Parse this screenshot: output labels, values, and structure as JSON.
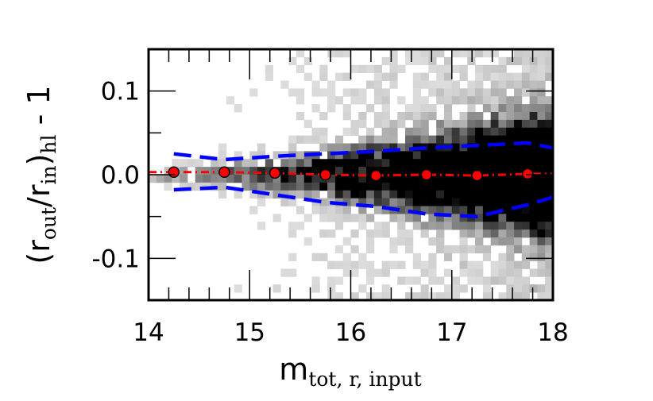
{
  "chart_data": {
    "type": "scatter",
    "title": "",
    "xlabel": {
      "main": "m",
      "sub": "tot, r, input"
    },
    "ylabel": {
      "open": "(r",
      "sub1": "out",
      "slash": "/r",
      "sub2": "in",
      "close": ")",
      "sub3": "hl",
      "tail": " - 1"
    },
    "xlim": [
      14,
      18
    ],
    "ylim": [
      -0.15,
      0.15
    ],
    "x_ticks": [
      14,
      15,
      16,
      17,
      18
    ],
    "x_tick_labels": [
      "14",
      "15",
      "16",
      "17",
      "18"
    ],
    "y_ticks": [
      -0.1,
      0.0,
      0.1
    ],
    "y_tick_labels": [
      "-0.1",
      "0.0",
      "0.1"
    ],
    "grid": false,
    "background": "2d histogram (grayscale density)",
    "series": [
      {
        "kind": "median-points",
        "color": "#ff0000",
        "x": [
          14.25,
          14.75,
          15.25,
          15.75,
          16.25,
          16.75,
          17.25,
          17.75
        ],
        "y": [
          0.003,
          0.003,
          0.002,
          0.0,
          -0.001,
          0.0,
          -0.001,
          0.001
        ]
      },
      {
        "kind": "median-line",
        "style": "dash-dot",
        "color": "#ff0000",
        "x": [
          14.0,
          14.25,
          14.75,
          15.25,
          15.75,
          16.25,
          16.75,
          17.25,
          17.75,
          18.0
        ],
        "y": [
          0.003,
          0.003,
          0.003,
          0.002,
          0.0,
          -0.001,
          0.0,
          -0.001,
          0.001,
          0.001
        ]
      },
      {
        "kind": "upper-bound",
        "style": "dashed",
        "color": "#0000ff",
        "x": [
          14.25,
          14.75,
          15.25,
          15.75,
          16.25,
          16.75,
          17.25,
          17.75,
          18.0
        ],
        "y": [
          0.025,
          0.018,
          0.022,
          0.025,
          0.028,
          0.032,
          0.035,
          0.038,
          0.032
        ]
      },
      {
        "kind": "lower-bound",
        "style": "dashed",
        "color": "#0000ff",
        "x": [
          14.25,
          14.75,
          15.25,
          15.75,
          16.25,
          16.75,
          17.25,
          17.75,
          18.0
        ],
        "y": [
          -0.018,
          -0.015,
          -0.024,
          -0.033,
          -0.038,
          -0.047,
          -0.05,
          -0.036,
          -0.027
        ]
      }
    ]
  }
}
